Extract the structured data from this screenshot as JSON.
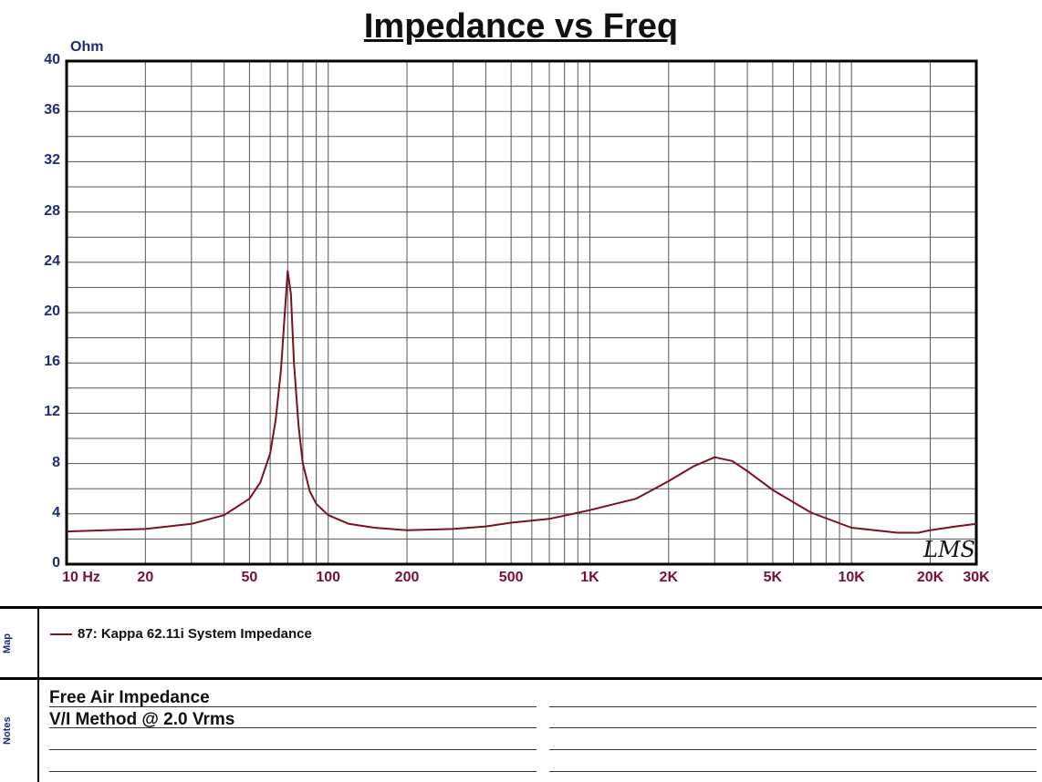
{
  "title": "Impedance vs Freq",
  "y_unit": "Ohm",
  "colors": {
    "curve": "#7a1020",
    "y_ticks": "#1f2a78",
    "x_ticks": "#7a1030",
    "grid": "#555555"
  },
  "chart_data": {
    "type": "line",
    "title": "Impedance vs Freq",
    "ylabel": "Ohm",
    "xlabel": "",
    "xscale": "log",
    "xlim": [
      10,
      30000
    ],
    "ylim": [
      0,
      40
    ],
    "grid": true,
    "x_tick_labels": [
      "10 Hz",
      "20",
      "50",
      "100",
      "200",
      "500",
      "1K",
      "2K",
      "5K",
      "10K",
      "20K",
      "30K"
    ],
    "x_tick_values": [
      10,
      20,
      50,
      100,
      200,
      500,
      1000,
      2000,
      5000,
      10000,
      20000,
      30000
    ],
    "y_ticks": [
      0,
      4,
      8,
      12,
      16,
      20,
      24,
      28,
      32,
      36,
      40
    ],
    "series": [
      {
        "name": "87: Kappa 62.11i System Impedance",
        "x": [
          10,
          20,
          30,
          40,
          50,
          55,
          60,
          63,
          66,
          68,
          70,
          72,
          74,
          77,
          80,
          85,
          90,
          100,
          120,
          150,
          200,
          300,
          400,
          500,
          700,
          1000,
          1500,
          2000,
          2500,
          3000,
          3500,
          4000,
          5000,
          7000,
          10000,
          15000,
          18000,
          20000,
          25000,
          30000
        ],
        "y": [
          2.6,
          2.8,
          3.2,
          3.9,
          5.2,
          6.5,
          8.8,
          11.5,
          15.5,
          19.5,
          23.3,
          21.5,
          16.0,
          11.0,
          8.0,
          5.8,
          4.8,
          3.9,
          3.2,
          2.9,
          2.7,
          2.8,
          3.0,
          3.3,
          3.6,
          4.3,
          5.2,
          6.6,
          7.8,
          8.5,
          8.2,
          7.4,
          5.9,
          4.1,
          2.9,
          2.5,
          2.5,
          2.7,
          3.0,
          3.2
        ]
      }
    ]
  },
  "legend": {
    "label": "87: Kappa 62.11i System Impedance"
  },
  "map_label": "Map",
  "notes_label": "Notes",
  "notes": [
    "Free Air Impedance",
    "V/I Method @ 2.0 Vrms"
  ],
  "logo": "LMS"
}
